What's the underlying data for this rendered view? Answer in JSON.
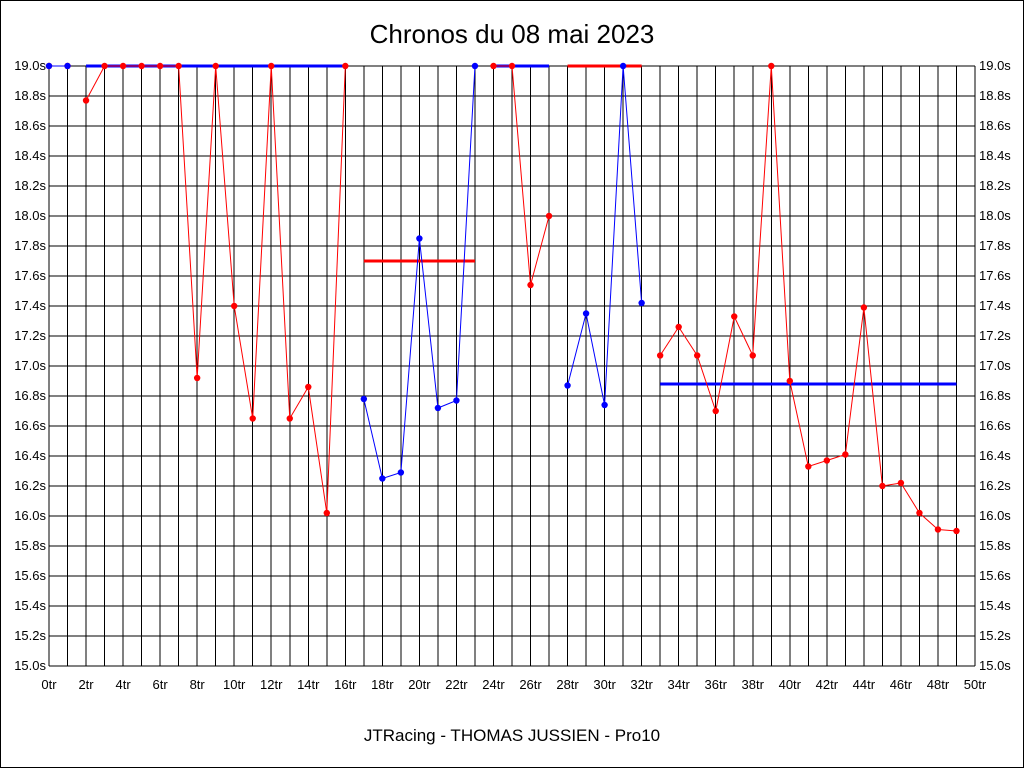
{
  "chart_data": {
    "type": "line",
    "title": "Chronos du 08 mai 2023",
    "subtitle": "JTRacing - THOMAS JUSSIEN - Pro10",
    "xlim": [
      0,
      50
    ],
    "ylim": [
      15.0,
      19.0
    ],
    "x_ticks": [
      "0tr",
      "2tr",
      "4tr",
      "6tr",
      "8tr",
      "10tr",
      "12tr",
      "14tr",
      "16tr",
      "18tr",
      "20tr",
      "22tr",
      "24tr",
      "26tr",
      "28tr",
      "30tr",
      "32tr",
      "34tr",
      "36tr",
      "38tr",
      "40tr",
      "42tr",
      "44tr",
      "46tr",
      "48tr",
      "50tr"
    ],
    "y_ticks": [
      "15.0s",
      "15.2s",
      "15.4s",
      "15.6s",
      "15.8s",
      "16.0s",
      "16.2s",
      "16.4s",
      "16.6s",
      "16.8s",
      "17.0s",
      "17.2s",
      "17.4s",
      "17.6s",
      "17.8s",
      "18.0s",
      "18.2s",
      "18.4s",
      "18.6s",
      "18.8s",
      "19.0s"
    ],
    "grid": true,
    "colors": {
      "red": "#ff0000",
      "blue": "#0000ff"
    },
    "series": [
      {
        "color": "#ff0000",
        "points": [
          [
            0,
            19.0
          ],
          [
            1,
            19.0
          ]
        ]
      },
      {
        "color": "#0000ff",
        "points": [
          [
            0,
            19.0
          ],
          [
            1,
            19.0
          ]
        ]
      },
      {
        "color": "#ff0000",
        "points": [
          [
            2,
            18.77
          ],
          [
            3,
            19.0
          ],
          [
            4,
            19.0
          ],
          [
            5,
            19.0
          ],
          [
            6,
            19.0
          ],
          [
            7,
            19.0
          ],
          [
            8,
            16.92
          ],
          [
            9,
            19.0
          ],
          [
            10,
            17.4
          ],
          [
            11,
            16.65
          ],
          [
            12,
            19.0
          ],
          [
            13,
            16.65
          ],
          [
            14,
            16.86
          ],
          [
            15,
            16.02
          ],
          [
            16,
            19.0
          ]
        ]
      },
      {
        "color": "#0000ff",
        "points": [
          [
            17,
            16.78
          ],
          [
            18,
            16.25
          ],
          [
            19,
            16.29
          ],
          [
            20,
            17.85
          ],
          [
            21,
            16.72
          ],
          [
            22,
            16.77
          ],
          [
            23,
            19.0
          ]
        ]
      },
      {
        "color": "#ff0000",
        "points": [
          [
            24,
            19.0
          ],
          [
            25,
            19.0
          ],
          [
            26,
            17.54
          ],
          [
            27,
            18.0
          ]
        ]
      },
      {
        "color": "#0000ff",
        "points": [
          [
            28,
            16.87
          ],
          [
            29,
            17.35
          ],
          [
            30,
            16.74
          ],
          [
            31,
            19.0
          ],
          [
            32,
            17.42
          ]
        ]
      },
      {
        "color": "#ff0000",
        "points": [
          [
            33,
            17.07
          ],
          [
            34,
            17.26
          ],
          [
            35,
            17.07
          ],
          [
            36,
            16.7
          ],
          [
            37,
            17.33
          ],
          [
            38,
            17.07
          ],
          [
            39,
            19.0
          ],
          [
            40,
            16.9
          ],
          [
            41,
            16.33
          ],
          [
            42,
            16.37
          ],
          [
            43,
            16.41
          ],
          [
            44,
            17.39
          ],
          [
            45,
            16.2
          ],
          [
            46,
            16.22
          ],
          [
            47,
            16.02
          ],
          [
            48,
            15.91
          ],
          [
            49,
            15.9
          ]
        ]
      }
    ],
    "averages": [
      {
        "color": "#0000ff",
        "x": [
          2,
          16
        ],
        "value": 19.0
      },
      {
        "color": "#ff0000",
        "x": [
          17,
          23
        ],
        "value": 17.7
      },
      {
        "color": "#0000ff",
        "x": [
          24,
          27
        ],
        "value": 19.0
      },
      {
        "color": "#ff0000",
        "x": [
          28,
          32
        ],
        "value": 19.0
      },
      {
        "color": "#0000ff",
        "x": [
          33,
          49
        ],
        "value": 16.88
      }
    ]
  }
}
